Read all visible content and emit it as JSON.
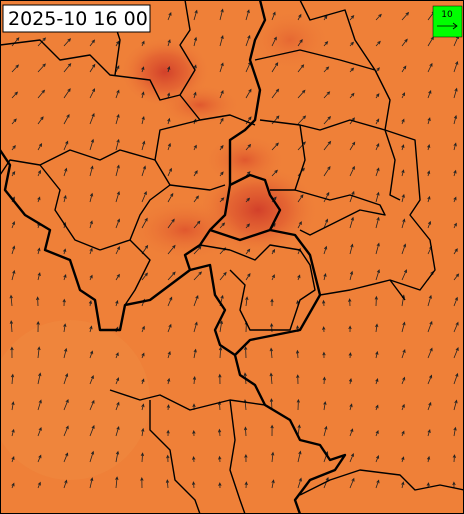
{
  "timestamp": "2025-10 16 00",
  "legend": {
    "label": "10"
  }
}
